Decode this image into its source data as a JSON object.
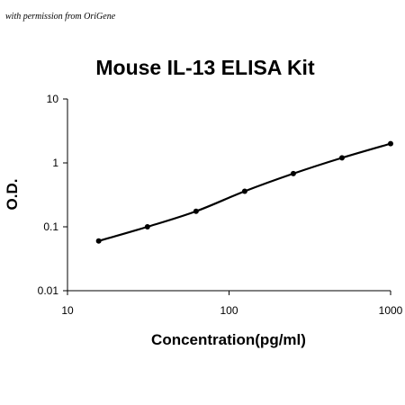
{
  "permission_note": "with permission from OriGene",
  "chart_data": {
    "type": "line",
    "title": "Mouse IL-13 ELISA Kit",
    "xlabel": "Concentration(pg/ml)",
    "ylabel": "O.D.",
    "x_scale": "log",
    "y_scale": "log",
    "xlim": [
      10,
      1000
    ],
    "ylim": [
      0.01,
      10
    ],
    "x_ticks": [
      "10",
      "100",
      "1000"
    ],
    "y_ticks": [
      "0.01",
      "0.1",
      "1",
      "10"
    ],
    "grid": false,
    "legend": "none",
    "series": [
      {
        "x": [
          15.6,
          31.25,
          62.5,
          125,
          250,
          500,
          1000
        ],
        "y": [
          0.06,
          0.1,
          0.175,
          0.36,
          0.68,
          1.2,
          2.0
        ]
      }
    ],
    "colors": {
      "line": "#000000",
      "marker": "#000000",
      "axis": "#000000"
    }
  }
}
